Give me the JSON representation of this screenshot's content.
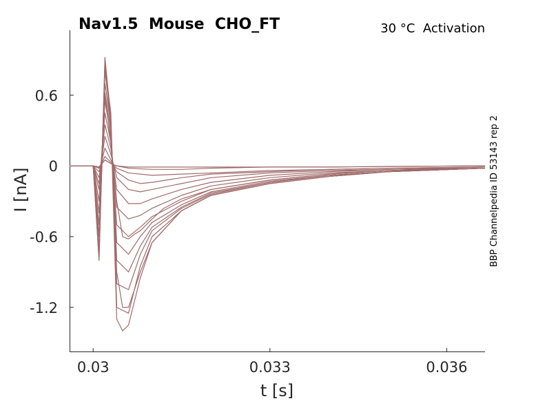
{
  "chart_data": {
    "type": "line",
    "title": "Nav1.5  Mouse  CHO_FT",
    "subtitle": "30 °C  Activation",
    "side_label": "BBP Channelpedia ID 53143 rep 2",
    "xlabel": "t [s]",
    "ylabel": "I [nA]",
    "xlim": [
      0.0296,
      0.03665
    ],
    "ylim": [
      -1.58,
      1.15
    ],
    "xticks": [
      0.03,
      0.033,
      0.036
    ],
    "xtick_labels": [
      "0.03",
      "0.033",
      "0.036"
    ],
    "yticks": [
      0.6,
      0,
      -0.6,
      -1.2
    ],
    "ytick_labels": [
      "0.6",
      "0",
      "-0.6",
      "-1.2"
    ],
    "grid": false,
    "line_color": "#a06a6a",
    "series": [
      {
        "x": [
          0.0296,
          0.0299,
          0.03,
          0.0301,
          0.0302,
          0.0303,
          0.0304,
          0.0306,
          0.031,
          0.0315,
          0.032,
          0.033,
          0.034,
          0.035,
          0.03665
        ],
        "y": [
          0.0,
          0.0,
          0.0,
          -0.01,
          0.05,
          0.02,
          0.0,
          -0.01,
          -0.01,
          -0.01,
          -0.01,
          -0.01,
          -0.01,
          -0.005,
          0.0
        ]
      },
      {
        "x": [
          0.0296,
          0.0299,
          0.03,
          0.0301,
          0.0302,
          0.0303,
          0.0304,
          0.0306,
          0.031,
          0.0315,
          0.032,
          0.033,
          0.034,
          0.035,
          0.03665
        ],
        "y": [
          0.0,
          0.0,
          0.0,
          -0.01,
          0.05,
          0.02,
          0.0,
          -0.02,
          -0.03,
          -0.03,
          -0.02,
          -0.01,
          -0.01,
          -0.005,
          0.0
        ]
      },
      {
        "x": [
          0.0296,
          0.0299,
          0.03,
          0.0301,
          0.0302,
          0.0303,
          0.0304,
          0.0306,
          0.031,
          0.0315,
          0.032,
          0.033,
          0.034,
          0.035,
          0.03665
        ],
        "y": [
          0.0,
          0.0,
          0.0,
          -0.02,
          0.08,
          0.03,
          -0.02,
          -0.06,
          -0.08,
          -0.07,
          -0.06,
          -0.04,
          -0.03,
          -0.02,
          -0.01
        ]
      },
      {
        "x": [
          0.0296,
          0.0299,
          0.03,
          0.0301,
          0.0302,
          0.0303,
          0.0304,
          0.0306,
          0.0308,
          0.031,
          0.0315,
          0.032,
          0.033,
          0.034,
          0.035,
          0.03665
        ],
        "y": [
          0.0,
          0.0,
          0.0,
          -0.05,
          0.15,
          0.05,
          -0.05,
          -0.12,
          -0.15,
          -0.14,
          -0.1,
          -0.07,
          -0.05,
          -0.03,
          -0.02,
          -0.01
        ]
      },
      {
        "x": [
          0.0296,
          0.0299,
          0.03,
          0.0301,
          0.0302,
          0.0303,
          0.0304,
          0.0306,
          0.0308,
          0.031,
          0.0315,
          0.032,
          0.033,
          0.034,
          0.035,
          0.03665
        ],
        "y": [
          0.0,
          0.0,
          0.0,
          -0.1,
          0.25,
          0.1,
          -0.1,
          -0.2,
          -0.22,
          -0.2,
          -0.15,
          -0.1,
          -0.06,
          -0.04,
          -0.03,
          -0.01
        ]
      },
      {
        "x": [
          0.0296,
          0.0299,
          0.03,
          0.0301,
          0.0302,
          0.0303,
          0.0304,
          0.0306,
          0.0308,
          0.031,
          0.0315,
          0.032,
          0.033,
          0.034,
          0.035,
          0.03665
        ],
        "y": [
          0.0,
          0.0,
          0.0,
          -0.15,
          0.35,
          0.15,
          -0.2,
          -0.32,
          -0.32,
          -0.28,
          -0.2,
          -0.14,
          -0.08,
          -0.05,
          -0.03,
          -0.02
        ]
      },
      {
        "x": [
          0.0296,
          0.0299,
          0.03,
          0.0301,
          0.0302,
          0.0303,
          0.0304,
          0.0306,
          0.0308,
          0.031,
          0.0315,
          0.032,
          0.033,
          0.034,
          0.035,
          0.03665
        ],
        "y": [
          0.0,
          0.0,
          0.0,
          -0.2,
          0.45,
          0.2,
          -0.35,
          -0.45,
          -0.42,
          -0.36,
          -0.25,
          -0.17,
          -0.1,
          -0.06,
          -0.04,
          -0.02
        ]
      },
      {
        "x": [
          0.0296,
          0.0299,
          0.03,
          0.0301,
          0.0302,
          0.0303,
          0.0304,
          0.0306,
          0.0308,
          0.031,
          0.0315,
          0.032,
          0.033,
          0.034,
          0.035,
          0.03665
        ],
        "y": [
          0.0,
          0.0,
          0.0,
          -0.3,
          0.55,
          0.25,
          -0.5,
          -0.6,
          -0.52,
          -0.43,
          -0.3,
          -0.2,
          -0.12,
          -0.07,
          -0.04,
          -0.02
        ]
      },
      {
        "x": [
          0.0296,
          0.0299,
          0.03,
          0.0301,
          0.0302,
          0.0303,
          0.0304,
          0.0306,
          0.0308,
          0.031,
          0.0315,
          0.032,
          0.033,
          0.034,
          0.035,
          0.03665
        ],
        "y": [
          0.0,
          0.0,
          0.0,
          -0.4,
          0.62,
          0.3,
          -0.65,
          -0.75,
          -0.6,
          -0.48,
          -0.33,
          -0.22,
          -0.13,
          -0.08,
          -0.05,
          -0.02
        ]
      },
      {
        "x": [
          0.0296,
          0.0299,
          0.03,
          0.0301,
          0.0302,
          0.0303,
          0.0304,
          0.0306,
          0.0308,
          0.031,
          0.0315,
          0.032,
          0.033,
          0.034,
          0.035,
          0.03665
        ],
        "y": [
          0.0,
          0.0,
          0.0,
          -0.5,
          0.7,
          0.35,
          -0.8,
          -0.9,
          -0.68,
          -0.52,
          -0.35,
          -0.23,
          -0.14,
          -0.08,
          -0.05,
          -0.02
        ]
      },
      {
        "x": [
          0.0296,
          0.0299,
          0.03,
          0.0301,
          0.0302,
          0.0303,
          0.0304,
          0.0306,
          0.0308,
          0.031,
          0.0315,
          0.032,
          0.033,
          0.034,
          0.035,
          0.03665
        ],
        "y": [
          0.0,
          0.0,
          0.0,
          -0.6,
          0.8,
          0.4,
          -1.0,
          -1.05,
          -0.75,
          -0.55,
          -0.36,
          -0.24,
          -0.14,
          -0.08,
          -0.05,
          -0.02
        ]
      },
      {
        "x": [
          0.0296,
          0.0299,
          0.03,
          0.0301,
          0.0302,
          0.0303,
          0.0304,
          0.0306,
          0.0308,
          0.031,
          0.0315,
          0.032,
          0.033,
          0.034,
          0.035,
          0.03665
        ],
        "y": [
          0.0,
          0.0,
          0.0,
          -0.7,
          0.85,
          0.45,
          -1.2,
          -1.25,
          -0.85,
          -0.6,
          -0.38,
          -0.25,
          -0.15,
          -0.09,
          -0.05,
          -0.02
        ]
      },
      {
        "x": [
          0.0296,
          0.0299,
          0.03,
          0.0301,
          0.0302,
          0.0303,
          0.0304,
          0.0305,
          0.0306,
          0.0308,
          0.031,
          0.0315,
          0.032,
          0.033,
          0.034,
          0.035,
          0.03665
        ],
        "y": [
          0.0,
          0.0,
          0.0,
          -0.8,
          0.92,
          0.4,
          -1.3,
          -1.4,
          -1.35,
          -0.95,
          -0.65,
          -0.38,
          -0.25,
          -0.15,
          -0.09,
          -0.05,
          -0.02
        ]
      },
      {
        "x": [
          0.0296,
          0.0299,
          0.03,
          0.0301,
          0.0302,
          0.0303,
          0.0304,
          0.0305,
          0.0306,
          0.0307,
          0.0308,
          0.031,
          0.0315,
          0.032,
          0.033,
          0.034,
          0.035,
          0.03665
        ],
        "y": [
          0.0,
          0.0,
          0.0,
          -0.8,
          0.9,
          0.3,
          -0.9,
          -1.2,
          -1.2,
          -1.05,
          -0.9,
          -0.65,
          -0.38,
          -0.25,
          -0.15,
          -0.09,
          -0.05,
          -0.02
        ]
      },
      {
        "x": [
          0.0296,
          0.0299,
          0.03,
          0.0301,
          0.0302,
          0.0303,
          0.0304,
          0.0305,
          0.0306,
          0.0307,
          0.0308,
          0.031,
          0.0312,
          0.0315,
          0.032,
          0.033,
          0.034,
          0.035,
          0.03665
        ],
        "y": [
          0.0,
          0.0,
          0.0,
          -0.6,
          0.6,
          0.2,
          -0.3,
          -0.6,
          -0.62,
          -0.58,
          -0.55,
          -0.45,
          -0.36,
          -0.28,
          -0.2,
          -0.12,
          -0.07,
          -0.04,
          -0.02
        ]
      }
    ]
  }
}
